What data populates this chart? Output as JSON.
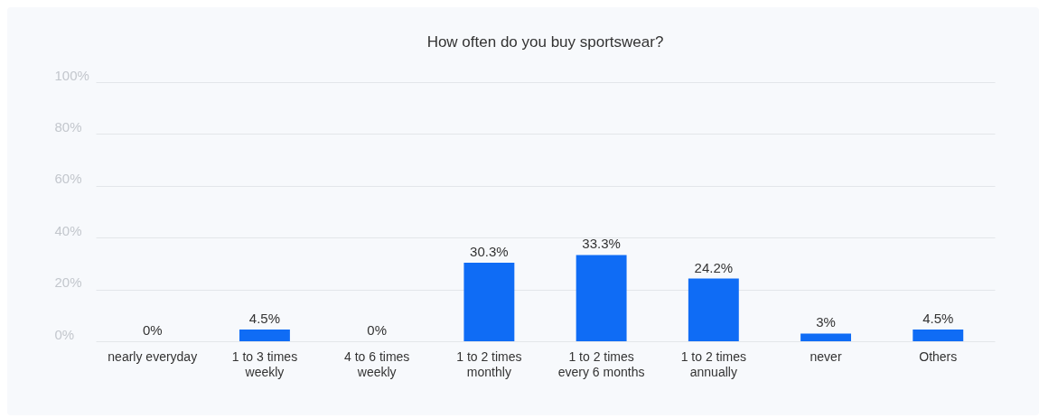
{
  "chart_data": {
    "type": "bar",
    "title": "How often do you buy sportswear?",
    "categories": [
      "nearly everyday",
      "1 to 3 times\nweekly",
      "4 to 6 times\nweekly",
      "1 to 2 times\nmonthly",
      "1 to 2 times\nevery 6 months",
      "1 to 2 times\nannually",
      "never",
      "Others"
    ],
    "values": [
      0,
      4.5,
      0,
      30.3,
      33.3,
      24.2,
      3,
      4.5
    ],
    "value_labels": [
      "0%",
      "4.5%",
      "0%",
      "30.3%",
      "33.3%",
      "24.2%",
      "3%",
      "4.5%"
    ],
    "color": "#0f6cf5",
    "ylim": [
      0,
      100
    ],
    "yticks": [
      {
        "value": 0,
        "label": "0%"
      },
      {
        "value": 20,
        "label": "20%"
      },
      {
        "value": 40,
        "label": "40%"
      },
      {
        "value": 60,
        "label": "60%"
      },
      {
        "value": 80,
        "label": "80%"
      },
      {
        "value": 100,
        "label": "100%"
      }
    ],
    "grid": "y"
  }
}
